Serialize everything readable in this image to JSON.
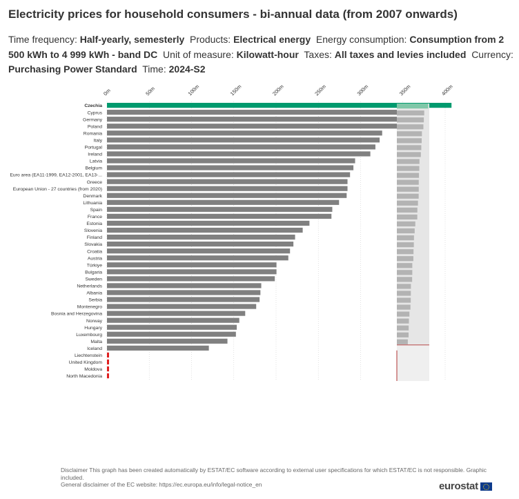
{
  "header": {
    "title": "Electricity prices for household consumers - bi-annual data (from 2007 onwards)"
  },
  "filters": [
    {
      "label": "Time frequency:",
      "value": "Half-yearly, semesterly"
    },
    {
      "label": "Products:",
      "value": "Electrical energy"
    },
    {
      "label": "Energy consumption:",
      "value": "Consumption from 2 500 kWh to 4 999 kWh - band DC"
    },
    {
      "label": "Unit of measure:",
      "value": "Kilowatt-hour"
    },
    {
      "label": "Taxes:",
      "value": "All taxes and levies included"
    },
    {
      "label": "Currency:",
      "value": "Purchasing Power Standard"
    },
    {
      "label": "Time:",
      "value": "2024-S2"
    }
  ],
  "footer": {
    "disclaimer_1": "Disclaimer This graph has been created automatically by ESTAT/EC software according to external user specifications for which ESTAT/EC is not responsible. Graphic included.",
    "disclaimer_2": "General disclaimer of the EC website: https://ec.europa.eu/info/legal-notice_en",
    "logo": "eurostat"
  },
  "colors": {
    "bar": "#808080",
    "highlight": "#009a6e",
    "missing": "#e02020",
    "grid": "#cccccc",
    "overview_bg": "#e6e6e6",
    "overview_bar": "#b3b3b3"
  },
  "chart_data": {
    "type": "bar",
    "orientation": "horizontal",
    "title": "Electricity prices for household consumers - bi-annual data (from 2007 onwards)",
    "xlabel": "",
    "ylabel": "",
    "xlim": [
      0,
      0.4
    ],
    "tick_values": [
      0,
      0.05,
      0.1,
      0.15,
      0.2,
      0.25,
      0.3,
      0.35,
      0.4
    ],
    "tick_labels": [
      "0m",
      "50m",
      "100m",
      "150m",
      "200m",
      "250m",
      "300m",
      "350m",
      "400m"
    ],
    "grid": true,
    "highlighted_category": "Czechia",
    "categories": [
      "Czechia",
      "Cyprus",
      "Germany",
      "Poland",
      "Romania",
      "Italy",
      "Portugal",
      "Ireland",
      "Latvia",
      "Belgium",
      "Euro area (EA11-1999, EA12-2001, EA13-...",
      "Greece",
      "European Union - 27 countries (from 2020)",
      "Denmark",
      "Lithuania",
      "Spain",
      "France",
      "Estonia",
      "Slovenia",
      "Finland",
      "Slovakia",
      "Croatia",
      "Austria",
      "Türkiye",
      "Bulgaria",
      "Sweden",
      "Netherlands",
      "Albania",
      "Serbia",
      "Montenegro",
      "Bosnia and Herzegovina",
      "Norway",
      "Hungary",
      "Luxembourg",
      "Malta",
      "Iceland",
      "Liechtenstein",
      "United Kingdom",
      "Moldova",
      "North Macedonia"
    ],
    "values": [
      0.4075,
      0.3555,
      0.3505,
      0.3445,
      0.3255,
      0.3225,
      0.3175,
      0.3115,
      0.2935,
      0.2915,
      0.2875,
      0.2845,
      0.2845,
      0.2835,
      0.2745,
      0.2665,
      0.2655,
      0.2395,
      0.2315,
      0.2225,
      0.2205,
      0.2165,
      0.2145,
      0.2005,
      0.2005,
      0.1985,
      0.1825,
      0.1815,
      0.1805,
      0.1765,
      0.1635,
      0.1565,
      0.1535,
      0.1525,
      0.1425,
      0.1205,
      null,
      null,
      null,
      null
    ]
  }
}
